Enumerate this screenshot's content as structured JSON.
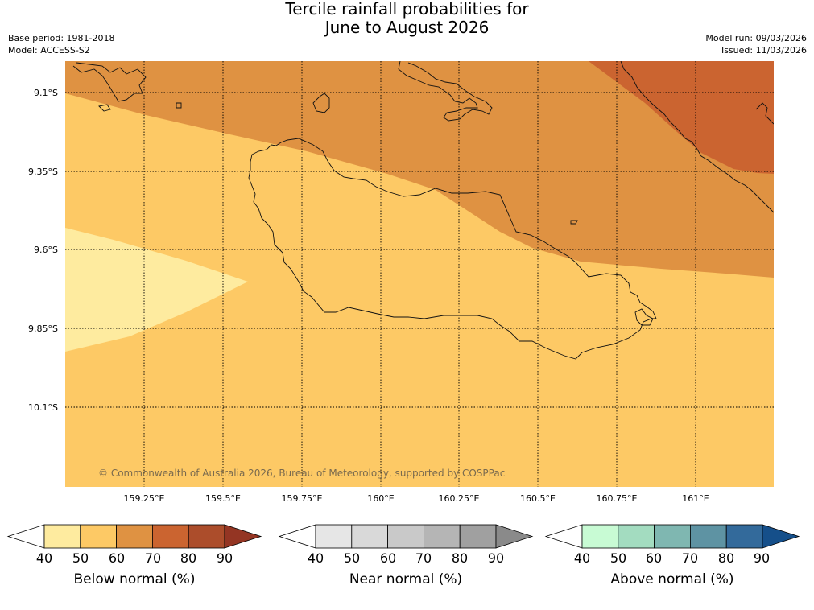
{
  "title": {
    "line1": "Tercile rainfall probabilities for",
    "line2": "June to August 2026"
  },
  "meta": {
    "base_period": "Base period: 1981-2018",
    "model": "Model: ACCESS-S2",
    "model_run": "Model run: 09/03/2026",
    "issued": "Issued: 11/03/2026"
  },
  "map": {
    "lat_labels": [
      "9.1°S",
      "9.35°S",
      "9.6°S",
      "9.85°S",
      "10.1°S"
    ],
    "lon_labels": [
      "159.25°E",
      "159.5°E",
      "159.75°E",
      "160°E",
      "160.25°E",
      "160.5°E",
      "160.75°E",
      "161°E"
    ],
    "copyright": "© Commonwealth of Australia 2026, Bureau of Meteorology, supported by COSPPac",
    "category_colors": {
      "below_40_50": "#feeb9f",
      "below_50_60": "#fdc965",
      "below_60_70": "#df9242",
      "below_70_80": "#cb6430"
    }
  },
  "legends": [
    {
      "title": "Below normal (%)",
      "ticks": [
        "40",
        "50",
        "60",
        "70",
        "80",
        "90"
      ],
      "colors": [
        "#ffffff",
        "#feeb9f",
        "#fdc965",
        "#df9242",
        "#cb6430",
        "#ac4d2b",
        "#943523"
      ]
    },
    {
      "title": "Near normal (%)",
      "ticks": [
        "40",
        "50",
        "60",
        "70",
        "80",
        "90"
      ],
      "colors": [
        "#ffffff",
        "#e6e6e6",
        "#d9d9d9",
        "#c9c9c9",
        "#b5b5b5",
        "#a0a0a0",
        "#8a8a8a"
      ]
    },
    {
      "title": "Above normal (%)",
      "ticks": [
        "40",
        "50",
        "60",
        "70",
        "80",
        "90"
      ],
      "colors": [
        "#ffffff",
        "#c8fbd4",
        "#a3dcc0",
        "#7fb7b1",
        "#5e93a3",
        "#336a9b",
        "#154f8a"
      ]
    }
  ]
}
